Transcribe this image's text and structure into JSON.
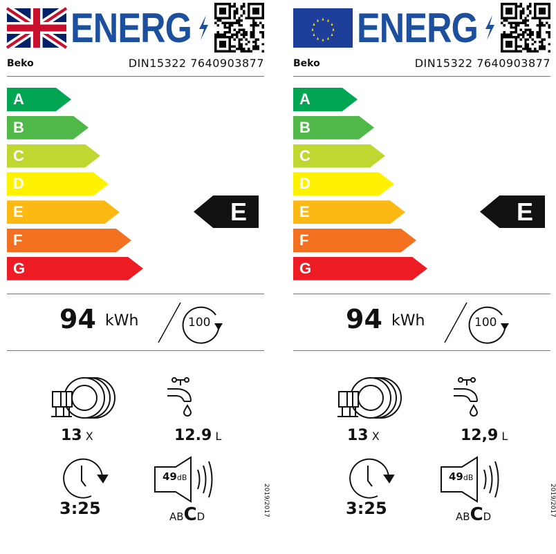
{
  "labels": [
    {
      "flag": "uk-flag",
      "title": "ENERG",
      "brand": "Beko",
      "model": "DIN15322 7640903877",
      "classes": [
        "A",
        "B",
        "C",
        "D",
        "E",
        "F",
        "G"
      ],
      "rating": "E",
      "energy_value": "94",
      "energy_unit": "kWh",
      "cycles": "100",
      "place_settings": "13",
      "place_settings_unit": "X",
      "water": "12.9",
      "water_unit": "L",
      "duration": "3:25",
      "noise": "49",
      "noise_unit": "dB",
      "noise_classes": [
        "A",
        "B",
        "C",
        "D"
      ],
      "noise_class": "C",
      "regulation": "2019/2017"
    },
    {
      "flag": "eu-flag",
      "title": "ENERG",
      "brand": "Beko",
      "model": "DIN15322 7640903877",
      "classes": [
        "A",
        "B",
        "C",
        "D",
        "E",
        "F",
        "G"
      ],
      "rating": "E",
      "energy_value": "94",
      "energy_unit": "kWh",
      "cycles": "100",
      "place_settings": "13",
      "place_settings_unit": "X",
      "water": "12,9",
      "water_unit": "L",
      "duration": "3:25",
      "noise": "49",
      "noise_unit": "dB",
      "noise_classes": [
        "A",
        "B",
        "C",
        "D"
      ],
      "noise_class": "C",
      "regulation": "2019/2017"
    }
  ],
  "colors": {
    "title_blue": "#1d4f9f",
    "class_colors": [
      "#00a651",
      "#50b848",
      "#bfd730",
      "#fff200",
      "#fdb913",
      "#f37021",
      "#ed1c24"
    ]
  }
}
